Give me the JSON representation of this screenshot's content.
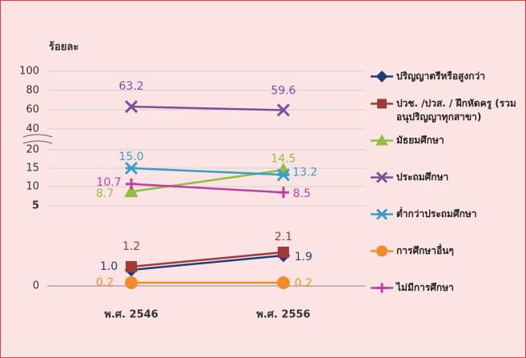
{
  "chart_data": {
    "type": "line",
    "y_label": "ร้อยละ",
    "categories": [
      "พ.ศ. 2546",
      "พ.ศ. 2556"
    ],
    "ylim": [
      0,
      100
    ],
    "yticks": [
      0,
      5,
      10,
      15,
      20,
      40,
      60,
      80,
      100
    ],
    "series": [
      {
        "name": "ปริญญาตรีหรือสูงกว่า",
        "color": "#1f3d7a",
        "marker": "diamond",
        "values": [
          1.0,
          1.9
        ],
        "value_labels": [
          "1.0",
          "1.9"
        ]
      },
      {
        "name": "ปวช. /ปวส. / ฝึกหัดครู (รวมอนุปริญญาทุกสาขา)",
        "color": "#9e3a38",
        "marker": "square",
        "values": [
          1.2,
          2.1
        ],
        "value_labels": [
          "1.2",
          "2.1"
        ]
      },
      {
        "name": "มัธยมศึกษา",
        "color": "#8fbf3f",
        "marker": "triangle",
        "values": [
          8.7,
          14.5
        ],
        "value_labels": [
          "8.7",
          "14.5"
        ]
      },
      {
        "name": "ประถมศึกษา",
        "color": "#7a4f9a",
        "marker": "x",
        "values": [
          63.2,
          59.6
        ],
        "value_labels": [
          "63.2",
          "59.6"
        ]
      },
      {
        "name": "ต่ำกว่าประถมศึกษา",
        "color": "#3a9dc4",
        "marker": "star",
        "values": [
          15.0,
          13.2
        ],
        "value_labels": [
          "15.0",
          "13.2"
        ]
      },
      {
        "name": "การศึกษาอื่นๆ",
        "color": "#f08c2a",
        "marker": "circle",
        "values": [
          0.2,
          0.2
        ],
        "value_labels": [
          "0.2",
          "0.2"
        ]
      },
      {
        "name": "ไม่มีการศึกษา",
        "color": "#c040a0",
        "marker": "plus",
        "values": [
          10.7,
          8.5
        ],
        "value_labels": [
          "10.7",
          "8.5"
        ]
      }
    ]
  }
}
